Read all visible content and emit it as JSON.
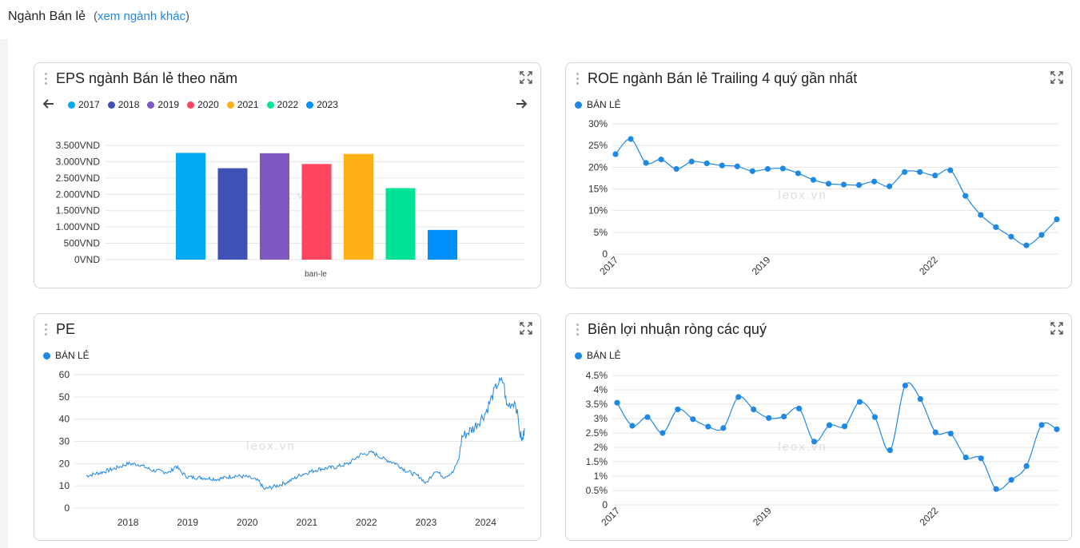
{
  "header": {
    "title": "Ngành Bán lẻ",
    "paren_open": "(",
    "link": "xem ngành khác",
    "paren_close": ")"
  },
  "colors": {
    "line": "#1e88e5",
    "grid": "#e6e6e6",
    "watermark": "#dcdcdc"
  },
  "watermark": "leox.vn",
  "eps_card": {
    "title": "EPS ngành Bán lẻ theo năm",
    "legend": [
      {
        "label": "2017",
        "color": "#03a9f4"
      },
      {
        "label": "2018",
        "color": "#3f51b5"
      },
      {
        "label": "2019",
        "color": "#7e57c2"
      },
      {
        "label": "2020",
        "color": "#ff4560"
      },
      {
        "label": "2021",
        "color": "#ffb019"
      },
      {
        "label": "2022",
        "color": "#00e396"
      },
      {
        "label": "2023",
        "color": "#008ffb"
      }
    ]
  },
  "roe_card": {
    "title": "ROE ngành Bán lẻ Trailing 4 quý gần nhất",
    "legend": "BÁN LẺ"
  },
  "pe_card": {
    "title": "PE",
    "legend": "BÁN LẺ"
  },
  "margin_card": {
    "title": "Biên lợi nhuận ròng các quý",
    "legend": "BÁN LẺ"
  },
  "chart_data": [
    {
      "id": "eps",
      "type": "bar",
      "categories": [
        "ban-le"
      ],
      "series": [
        {
          "name": "2017",
          "values": [
            3270
          ]
        },
        {
          "name": "2018",
          "values": [
            2800
          ]
        },
        {
          "name": "2019",
          "values": [
            3260
          ]
        },
        {
          "name": "2020",
          "values": [
            2930
          ]
        },
        {
          "name": "2021",
          "values": [
            3240
          ]
        },
        {
          "name": "2022",
          "values": [
            2190
          ]
        },
        {
          "name": "2023",
          "values": [
            910
          ]
        }
      ],
      "yticks": [
        "0VND",
        "500VND",
        "1.000VND",
        "1.500VND",
        "2.000VND",
        "2.500VND",
        "3.000VND",
        "3.500VND"
      ],
      "ylim": [
        0,
        3500
      ],
      "grid": true
    },
    {
      "id": "roe",
      "type": "line",
      "series": [
        {
          "name": "BÁN LẺ",
          "values": [
            23.0,
            26.5,
            21.0,
            21.8,
            19.6,
            21.3,
            20.9,
            20.4,
            20.2,
            19.1,
            19.6,
            19.7,
            18.6,
            17.1,
            16.2,
            16.0,
            15.9,
            16.7,
            15.6,
            18.9,
            18.9,
            18.1,
            19.3,
            13.4,
            9.0,
            6.2,
            4.0,
            2.0,
            4.4,
            8.0
          ]
        }
      ],
      "xticks": [
        "2017",
        "2019",
        "2022"
      ],
      "xtick_index": [
        0,
        10,
        21
      ],
      "yticks": [
        "0",
        "5%",
        "10%",
        "15%",
        "20%",
        "25%",
        "30%"
      ],
      "ylim": [
        0,
        30
      ],
      "grid": true
    },
    {
      "id": "pe",
      "type": "line",
      "x_range": [
        2017.3,
        2024.65
      ],
      "anchors": [
        [
          2017.3,
          14.5
        ],
        [
          2017.55,
          16
        ],
        [
          2017.8,
          18
        ],
        [
          2018.0,
          20
        ],
        [
          2018.2,
          19.5
        ],
        [
          2018.4,
          17
        ],
        [
          2018.7,
          16
        ],
        [
          2018.8,
          19
        ],
        [
          2018.9,
          16
        ],
        [
          2019.0,
          14
        ],
        [
          2019.3,
          13.5
        ],
        [
          2019.5,
          13
        ],
        [
          2019.8,
          14.5
        ],
        [
          2020.0,
          14
        ],
        [
          2020.2,
          12
        ],
        [
          2020.28,
          8.5
        ],
        [
          2020.5,
          10
        ],
        [
          2020.7,
          12
        ],
        [
          2020.9,
          15
        ],
        [
          2021.2,
          17.5
        ],
        [
          2021.5,
          18.5
        ],
        [
          2021.7,
          20
        ],
        [
          2021.9,
          24
        ],
        [
          2022.1,
          25
        ],
        [
          2022.3,
          22
        ],
        [
          2022.5,
          20
        ],
        [
          2022.65,
          17
        ],
        [
          2022.9,
          14
        ],
        [
          2023.0,
          11
        ],
        [
          2023.15,
          17
        ],
        [
          2023.3,
          14
        ],
        [
          2023.45,
          16
        ],
        [
          2023.55,
          22
        ],
        [
          2023.6,
          32
        ],
        [
          2023.8,
          36
        ],
        [
          2024.0,
          43
        ],
        [
          2024.2,
          56
        ],
        [
          2024.3,
          57
        ],
        [
          2024.35,
          46
        ],
        [
          2024.5,
          48
        ],
        [
          2024.58,
          33
        ],
        [
          2024.62,
          30
        ],
        [
          2024.65,
          36
        ]
      ],
      "xticks": [
        "2018",
        "2019",
        "2020",
        "2021",
        "2022",
        "2023",
        "2024"
      ],
      "yticks": [
        "0",
        "10",
        "20",
        "30",
        "40",
        "50",
        "60"
      ],
      "ylim": [
        0,
        60
      ],
      "grid": true
    },
    {
      "id": "margin",
      "type": "line",
      "series": [
        {
          "name": "BÁN LẺ",
          "values": [
            3.55,
            2.75,
            3.05,
            2.5,
            3.32,
            2.98,
            2.72,
            2.67,
            3.75,
            3.32,
            3.02,
            3.07,
            3.35,
            2.2,
            2.77,
            2.73,
            3.58,
            3.05,
            1.9,
            4.15,
            3.68,
            2.52,
            2.48,
            1.65,
            1.62,
            0.55,
            0.87,
            1.35,
            2.78,
            2.63
          ]
        }
      ],
      "xticks": [
        "2017",
        "2019",
        "2022"
      ],
      "xtick_index": [
        0,
        10,
        21
      ],
      "yticks": [
        "0",
        "0.5%",
        "1%",
        "1.5%",
        "2%",
        "2.5%",
        "3%",
        "3.5%",
        "4%",
        "4.5%"
      ],
      "ylim": [
        0,
        4.5
      ],
      "grid": true
    }
  ]
}
